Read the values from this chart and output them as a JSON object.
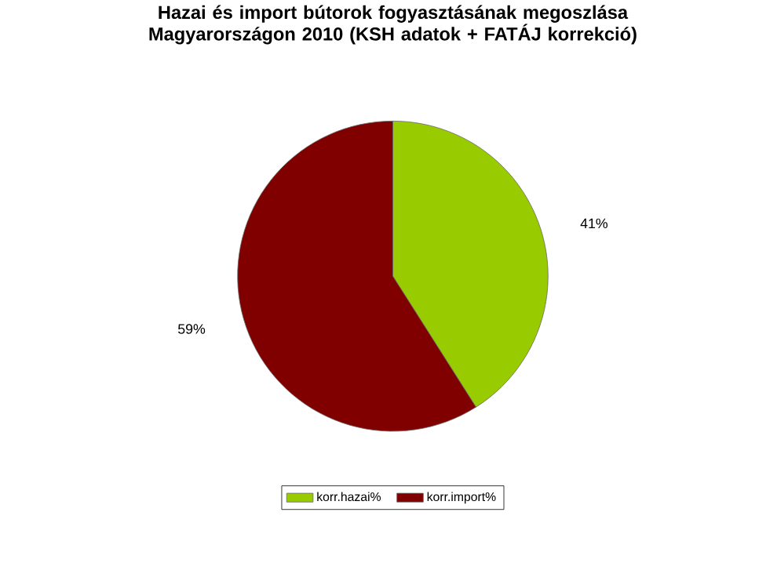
{
  "chart_data": {
    "type": "pie",
    "title": "Hazai és import bútorok fogyasztásának megoszlása Magyarországon 2010 (KSH adatok + FATÁJ korrekció)",
    "categories": [
      "korr.hazai%",
      "korr.import%"
    ],
    "values": [
      41,
      59
    ],
    "colors": [
      "#99cc00",
      "#800000"
    ],
    "value_labels": [
      "41%",
      "59%"
    ],
    "legend": "bottom"
  }
}
